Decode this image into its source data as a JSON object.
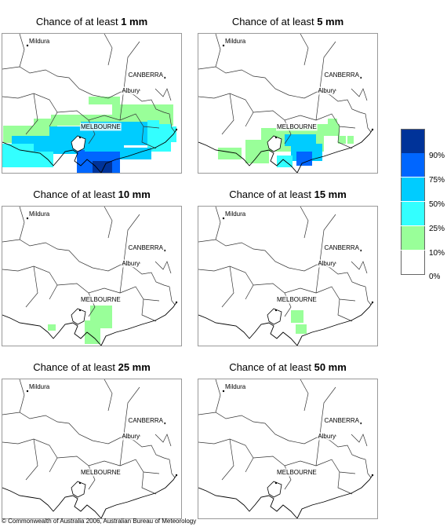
{
  "panels": [
    {
      "title_prefix": "Chance of at least ",
      "amount": "1 mm"
    },
    {
      "title_prefix": "Chance of at least ",
      "amount": "5 mm"
    },
    {
      "title_prefix": "Chance of at least ",
      "amount": "10 mm"
    },
    {
      "title_prefix": "Chance of at least ",
      "amount": "15 mm"
    },
    {
      "title_prefix": "Chance of at least ",
      "amount": "25 mm"
    },
    {
      "title_prefix": "Chance of at least ",
      "amount": "50 mm"
    }
  ],
  "map_labels": {
    "mildura": "Mildura",
    "canberra": "CANBERRA",
    "albury": "Albury",
    "melbourne": "MELBOURNE"
  },
  "legend": {
    "labels": [
      "90%",
      "75%",
      "50%",
      "25%",
      "10%",
      "0%"
    ],
    "colors": [
      "#003399",
      "#0066ff",
      "#00ccff",
      "#33ffff",
      "#99ff99",
      "#ffffff"
    ]
  },
  "footer": "© Commonwealth of Australia 2006, Australian Bureau of Meteorology"
}
